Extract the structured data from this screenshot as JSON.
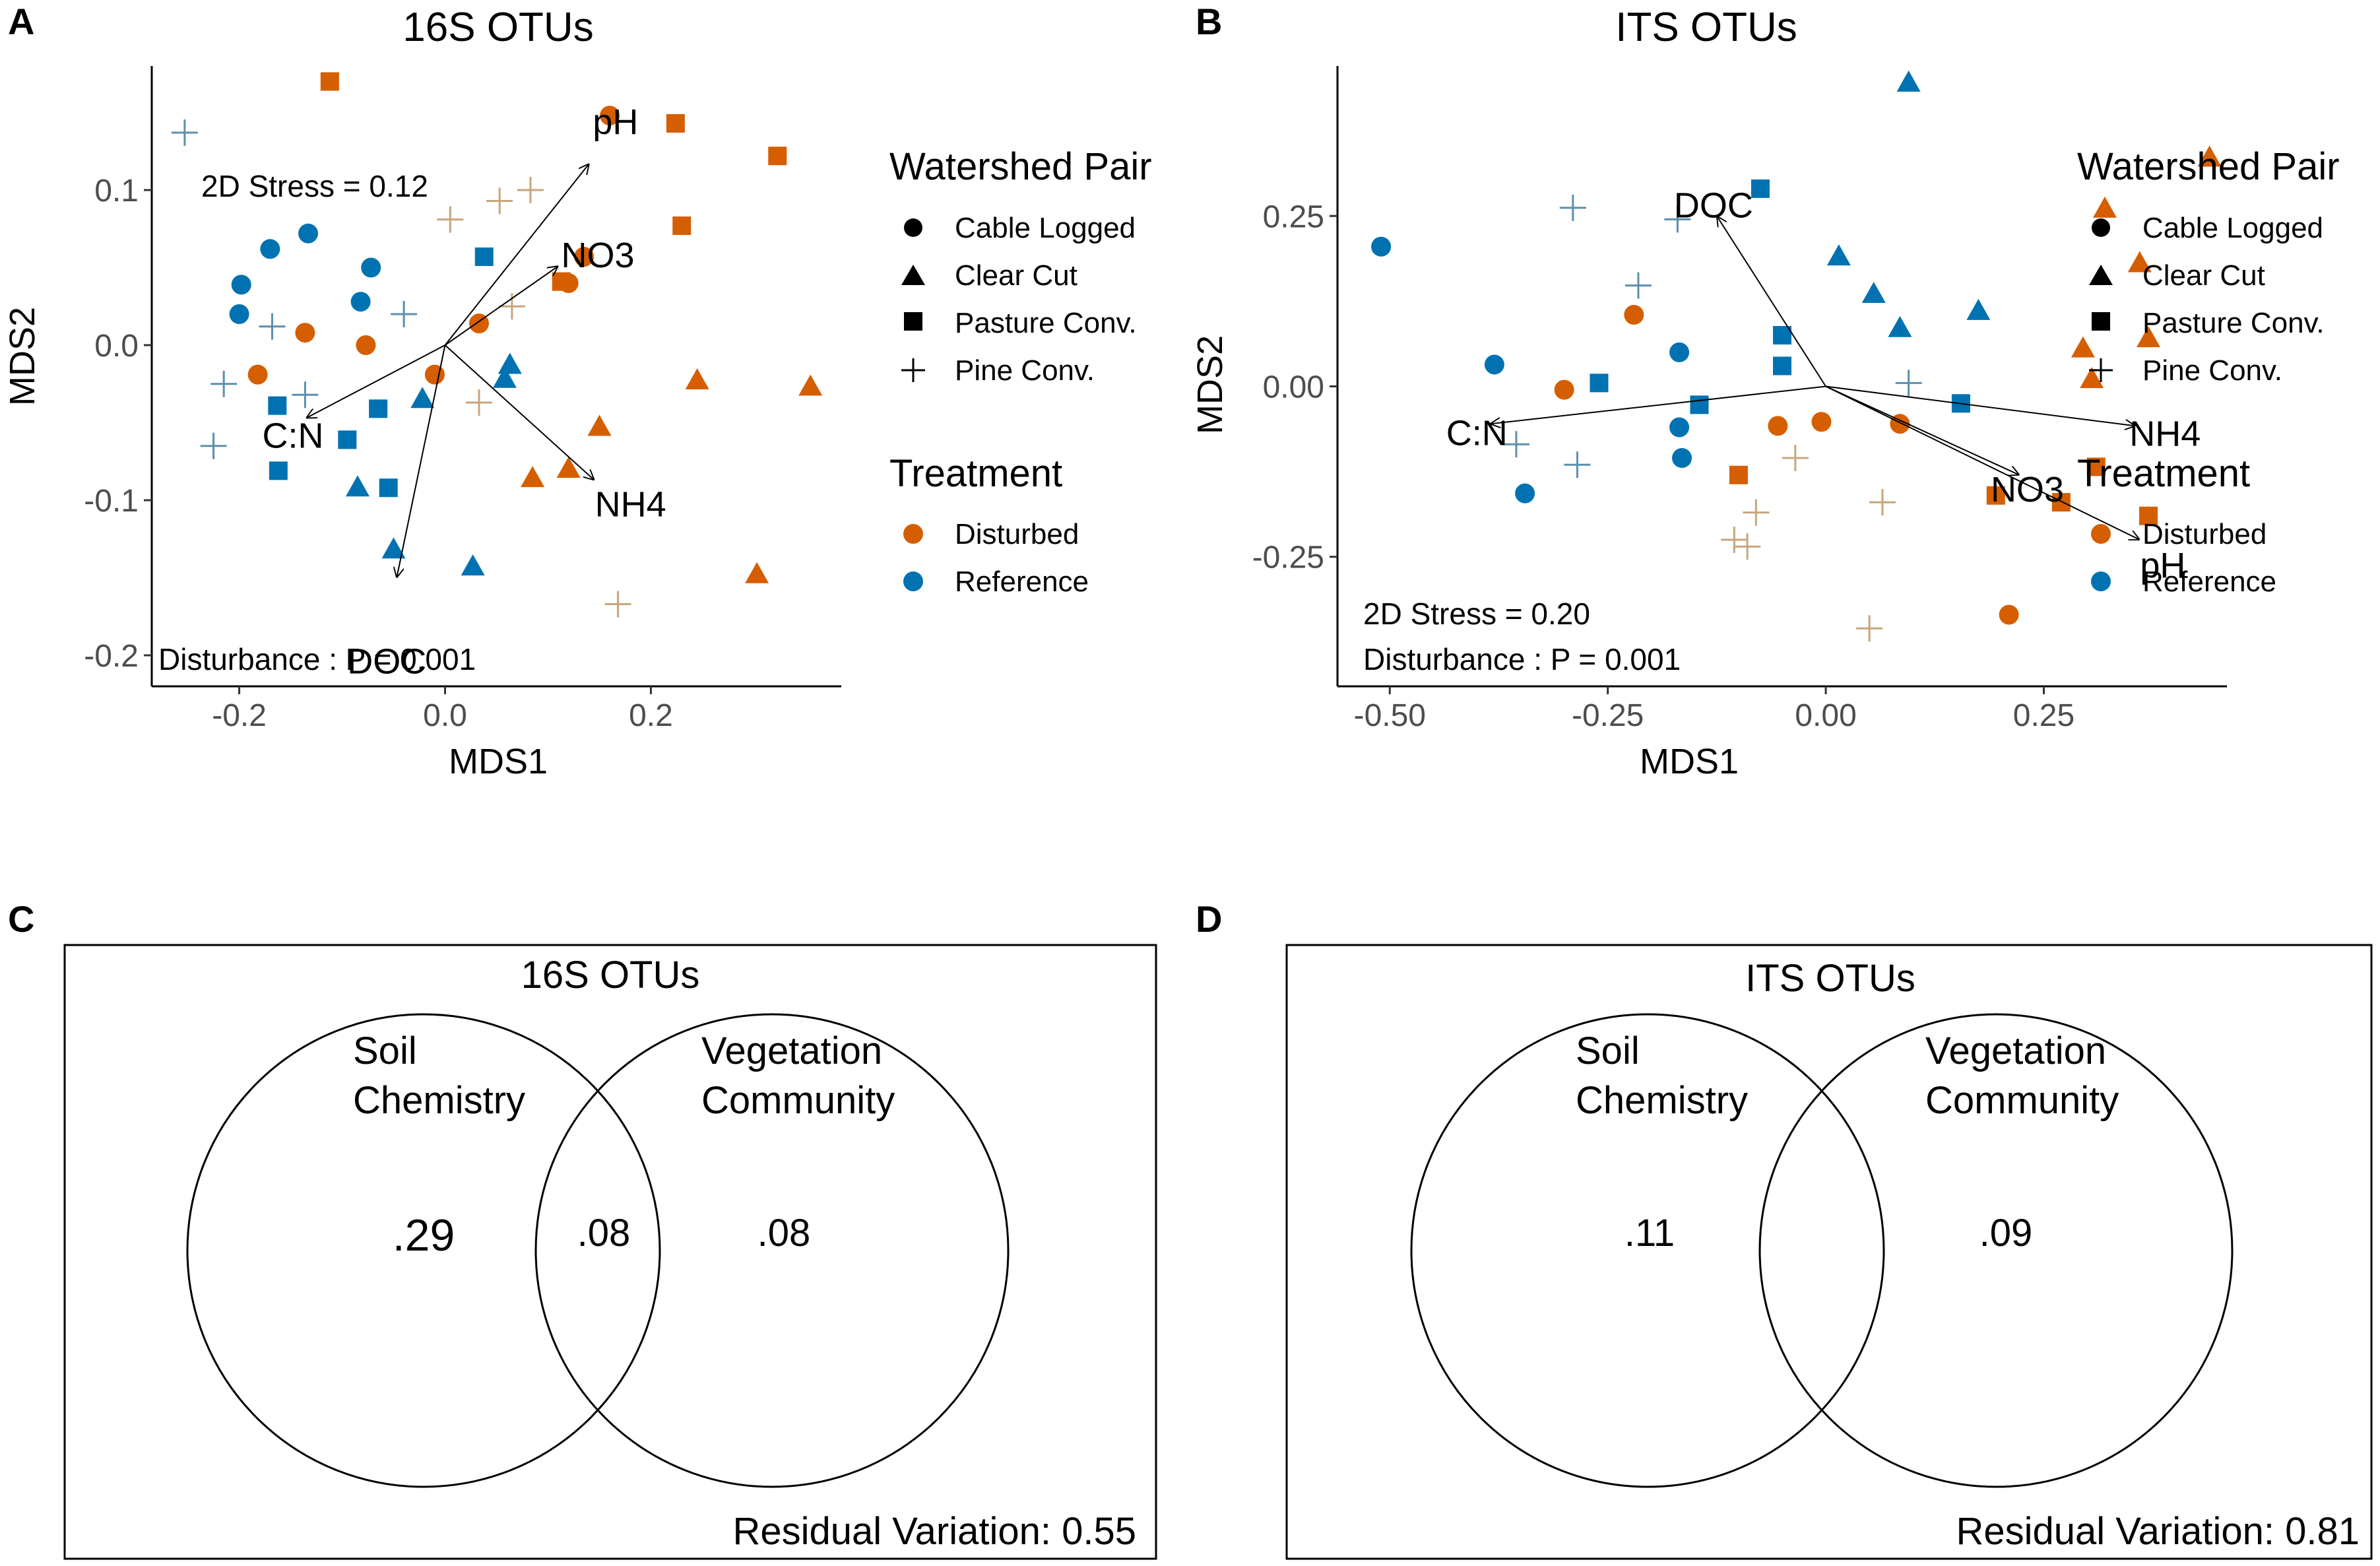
{
  "colors": {
    "disturbed": "#D55E00",
    "reference": "#0072B2",
    "disturbed_plus": "#C8A57A",
    "reference_plus": "#5B8FAE"
  },
  "panels": {
    "A": {
      "label": "A"
    },
    "B": {
      "label": "B"
    },
    "C": {
      "label": "C"
    },
    "D": {
      "label": "D"
    }
  },
  "legend": {
    "shape_title": "Watershed Pair",
    "shapes": [
      "Cable Logged",
      "Clear Cut",
      "Pasture Conv.",
      "Pine Conv."
    ],
    "color_title": "Treatment",
    "colors": [
      "Disturbed",
      "Reference"
    ]
  },
  "chart_data": [
    {
      "id": "A",
      "type": "scatter",
      "title": "16S OTUs",
      "xlabel": "MDS1",
      "ylabel": "MDS2",
      "xlim": [
        -0.285,
        0.385
      ],
      "ylim": [
        -0.22,
        0.18
      ],
      "xticks": [
        -0.2,
        0.0,
        0.2
      ],
      "xtick_labels": [
        "-0.2",
        "0.0",
        "0.2"
      ],
      "yticks": [
        -0.2,
        -0.1,
        0.0,
        0.1
      ],
      "ytick_labels": [
        "-0.2",
        "-0.1",
        "0.0",
        "0.1"
      ],
      "stress": "2D Stress = 0.12",
      "disturbance": "Disturbance :  P = 0.001",
      "vectors": [
        {
          "name": "pH",
          "x": 0.14,
          "y": 0.117
        },
        {
          "name": "NO3",
          "x": 0.11,
          "y": 0.051
        },
        {
          "name": "NH4",
          "x": 0.145,
          "y": -0.087
        },
        {
          "name": "C:N",
          "x": -0.135,
          "y": -0.047
        },
        {
          "name": "DOC",
          "x": -0.047,
          "y": -0.15
        }
      ],
      "points": [
        {
          "x": 0.16,
          "y": 0.148,
          "shape": "circle",
          "group": "disturbed"
        },
        {
          "x": 0.12,
          "y": 0.04,
          "shape": "circle",
          "group": "disturbed"
        },
        {
          "x": 0.135,
          "y": 0.057,
          "shape": "circle",
          "group": "disturbed"
        },
        {
          "x": 0.033,
          "y": 0.014,
          "shape": "circle",
          "group": "disturbed"
        },
        {
          "x": -0.01,
          "y": -0.019,
          "shape": "circle",
          "group": "disturbed"
        },
        {
          "x": -0.136,
          "y": 0.008,
          "shape": "circle",
          "group": "disturbed"
        },
        {
          "x": -0.077,
          "y": 0.0,
          "shape": "circle",
          "group": "disturbed"
        },
        {
          "x": -0.182,
          "y": -0.019,
          "shape": "circle",
          "group": "disturbed"
        },
        {
          "x": -0.133,
          "y": 0.072,
          "shape": "circle",
          "group": "reference"
        },
        {
          "x": -0.17,
          "y": 0.062,
          "shape": "circle",
          "group": "reference"
        },
        {
          "x": -0.198,
          "y": 0.039,
          "shape": "circle",
          "group": "reference"
        },
        {
          "x": -0.2,
          "y": 0.02,
          "shape": "circle",
          "group": "reference"
        },
        {
          "x": -0.072,
          "y": 0.05,
          "shape": "circle",
          "group": "reference"
        },
        {
          "x": -0.082,
          "y": 0.028,
          "shape": "circle",
          "group": "reference"
        },
        {
          "x": 0.245,
          "y": -0.023,
          "shape": "triangle",
          "group": "disturbed"
        },
        {
          "x": 0.355,
          "y": -0.027,
          "shape": "triangle",
          "group": "disturbed"
        },
        {
          "x": 0.15,
          "y": -0.053,
          "shape": "triangle",
          "group": "disturbed"
        },
        {
          "x": 0.085,
          "y": -0.086,
          "shape": "triangle",
          "group": "disturbed"
        },
        {
          "x": 0.12,
          "y": -0.08,
          "shape": "triangle",
          "group": "disturbed"
        },
        {
          "x": 0.303,
          "y": -0.148,
          "shape": "triangle",
          "group": "disturbed"
        },
        {
          "x": 0.063,
          "y": -0.013,
          "shape": "triangle",
          "group": "reference"
        },
        {
          "x": 0.058,
          "y": -0.022,
          "shape": "triangle",
          "group": "reference"
        },
        {
          "x": -0.022,
          "y": -0.035,
          "shape": "triangle",
          "group": "reference"
        },
        {
          "x": -0.085,
          "y": -0.092,
          "shape": "triangle",
          "group": "reference"
        },
        {
          "x": -0.05,
          "y": -0.132,
          "shape": "triangle",
          "group": "reference"
        },
        {
          "x": 0.027,
          "y": -0.143,
          "shape": "triangle",
          "group": "reference"
        },
        {
          "x": -0.112,
          "y": 0.17,
          "shape": "square",
          "group": "disturbed"
        },
        {
          "x": 0.224,
          "y": 0.143,
          "shape": "square",
          "group": "disturbed"
        },
        {
          "x": 0.323,
          "y": 0.122,
          "shape": "square",
          "group": "disturbed"
        },
        {
          "x": 0.23,
          "y": 0.077,
          "shape": "square",
          "group": "disturbed"
        },
        {
          "x": 0.113,
          "y": 0.041,
          "shape": "square",
          "group": "disturbed"
        },
        {
          "x": 0.038,
          "y": 0.057,
          "shape": "square",
          "group": "reference"
        },
        {
          "x": -0.163,
          "y": -0.039,
          "shape": "square",
          "group": "reference"
        },
        {
          "x": -0.162,
          "y": -0.081,
          "shape": "square",
          "group": "reference"
        },
        {
          "x": -0.095,
          "y": -0.061,
          "shape": "square",
          "group": "reference"
        },
        {
          "x": -0.065,
          "y": -0.041,
          "shape": "square",
          "group": "reference"
        },
        {
          "x": -0.055,
          "y": -0.092,
          "shape": "square",
          "group": "reference"
        },
        {
          "x": 0.053,
          "y": 0.093,
          "shape": "plus",
          "group": "disturbed"
        },
        {
          "x": 0.083,
          "y": 0.1,
          "shape": "plus",
          "group": "disturbed"
        },
        {
          "x": 0.005,
          "y": 0.081,
          "shape": "plus",
          "group": "disturbed"
        },
        {
          "x": 0.065,
          "y": 0.025,
          "shape": "plus",
          "group": "disturbed"
        },
        {
          "x": 0.033,
          "y": -0.037,
          "shape": "plus",
          "group": "disturbed"
        },
        {
          "x": 0.168,
          "y": -0.167,
          "shape": "plus",
          "group": "disturbed"
        },
        {
          "x": -0.253,
          "y": 0.137,
          "shape": "plus",
          "group": "reference"
        },
        {
          "x": -0.168,
          "y": 0.012,
          "shape": "plus",
          "group": "reference"
        },
        {
          "x": -0.04,
          "y": 0.02,
          "shape": "plus",
          "group": "reference"
        },
        {
          "x": -0.215,
          "y": -0.025,
          "shape": "plus",
          "group": "reference"
        },
        {
          "x": -0.136,
          "y": -0.032,
          "shape": "plus",
          "group": "reference"
        },
        {
          "x": -0.225,
          "y": -0.065,
          "shape": "plus",
          "group": "reference"
        }
      ]
    },
    {
      "id": "B",
      "type": "scatter",
      "title": "ITS OTUs",
      "xlabel": "MDS1",
      "ylabel": "MDS2",
      "xlim": [
        -0.56,
        0.46
      ],
      "ylim": [
        -0.44,
        0.47
      ],
      "xticks": [
        -0.5,
        -0.25,
        0.0,
        0.25
      ],
      "xtick_labels": [
        "-0.50",
        "-0.25",
        "0.00",
        "0.25"
      ],
      "yticks": [
        -0.25,
        0.0,
        0.25
      ],
      "ytick_labels": [
        "-0.25",
        "0.00",
        "0.25"
      ],
      "stress": "2D Stress = 0.20",
      "disturbance": "Disturbance :  P = 0.001",
      "vectors": [
        {
          "name": "DOC",
          "x": -0.125,
          "y": 0.25
        },
        {
          "name": "C:N",
          "x": -0.385,
          "y": -0.055
        },
        {
          "name": "NH4",
          "x": 0.355,
          "y": -0.058
        },
        {
          "name": "NO3",
          "x": 0.222,
          "y": -0.13
        },
        {
          "name": "pH",
          "x": 0.36,
          "y": -0.225
        }
      ],
      "points": [
        {
          "x": -0.22,
          "y": 0.105,
          "shape": "circle",
          "group": "disturbed"
        },
        {
          "x": -0.3,
          "y": -0.005,
          "shape": "circle",
          "group": "disturbed"
        },
        {
          "x": -0.055,
          "y": -0.058,
          "shape": "circle",
          "group": "disturbed"
        },
        {
          "x": -0.005,
          "y": -0.052,
          "shape": "circle",
          "group": "disturbed"
        },
        {
          "x": 0.085,
          "y": -0.055,
          "shape": "circle",
          "group": "disturbed"
        },
        {
          "x": 0.21,
          "y": -0.335,
          "shape": "circle",
          "group": "disturbed"
        },
        {
          "x": -0.51,
          "y": 0.205,
          "shape": "circle",
          "group": "reference"
        },
        {
          "x": -0.38,
          "y": 0.032,
          "shape": "circle",
          "group": "reference"
        },
        {
          "x": -0.168,
          "y": 0.05,
          "shape": "circle",
          "group": "reference"
        },
        {
          "x": -0.168,
          "y": -0.06,
          "shape": "circle",
          "group": "reference"
        },
        {
          "x": -0.165,
          "y": -0.105,
          "shape": "circle",
          "group": "reference"
        },
        {
          "x": -0.345,
          "y": -0.157,
          "shape": "circle",
          "group": "reference"
        },
        {
          "x": 0.44,
          "y": 0.335,
          "shape": "triangle",
          "group": "disturbed"
        },
        {
          "x": 0.32,
          "y": 0.26,
          "shape": "triangle",
          "group": "disturbed"
        },
        {
          "x": 0.36,
          "y": 0.18,
          "shape": "triangle",
          "group": "disturbed"
        },
        {
          "x": 0.37,
          "y": 0.07,
          "shape": "triangle",
          "group": "disturbed"
        },
        {
          "x": 0.295,
          "y": 0.055,
          "shape": "triangle",
          "group": "disturbed"
        },
        {
          "x": 0.305,
          "y": 0.01,
          "shape": "triangle",
          "group": "disturbed"
        },
        {
          "x": 0.095,
          "y": 0.445,
          "shape": "triangle",
          "group": "reference"
        },
        {
          "x": 0.015,
          "y": 0.19,
          "shape": "triangle",
          "group": "reference"
        },
        {
          "x": 0.055,
          "y": 0.135,
          "shape": "triangle",
          "group": "reference"
        },
        {
          "x": 0.085,
          "y": 0.085,
          "shape": "triangle",
          "group": "reference"
        },
        {
          "x": 0.175,
          "y": 0.11,
          "shape": "triangle",
          "group": "reference"
        },
        {
          "x": -0.1,
          "y": -0.13,
          "shape": "square",
          "group": "disturbed"
        },
        {
          "x": 0.195,
          "y": -0.16,
          "shape": "square",
          "group": "disturbed"
        },
        {
          "x": 0.27,
          "y": -0.17,
          "shape": "square",
          "group": "disturbed"
        },
        {
          "x": 0.31,
          "y": -0.118,
          "shape": "square",
          "group": "disturbed"
        },
        {
          "x": 0.37,
          "y": -0.19,
          "shape": "square",
          "group": "disturbed"
        },
        {
          "x": -0.075,
          "y": 0.29,
          "shape": "square",
          "group": "reference"
        },
        {
          "x": -0.05,
          "y": 0.075,
          "shape": "square",
          "group": "reference"
        },
        {
          "x": -0.05,
          "y": 0.03,
          "shape": "square",
          "group": "reference"
        },
        {
          "x": -0.26,
          "y": 0.005,
          "shape": "square",
          "group": "reference"
        },
        {
          "x": -0.145,
          "y": -0.027,
          "shape": "square",
          "group": "reference"
        },
        {
          "x": 0.155,
          "y": -0.025,
          "shape": "square",
          "group": "reference"
        },
        {
          "x": -0.035,
          "y": -0.105,
          "shape": "plus",
          "group": "disturbed"
        },
        {
          "x": -0.08,
          "y": -0.185,
          "shape": "plus",
          "group": "disturbed"
        },
        {
          "x": -0.105,
          "y": -0.225,
          "shape": "plus",
          "group": "disturbed"
        },
        {
          "x": -0.09,
          "y": -0.235,
          "shape": "plus",
          "group": "disturbed"
        },
        {
          "x": 0.065,
          "y": -0.17,
          "shape": "plus",
          "group": "disturbed"
        },
        {
          "x": 0.05,
          "y": -0.355,
          "shape": "plus",
          "group": "disturbed"
        },
        {
          "x": -0.29,
          "y": 0.262,
          "shape": "plus",
          "group": "reference"
        },
        {
          "x": -0.17,
          "y": 0.245,
          "shape": "plus",
          "group": "reference"
        },
        {
          "x": -0.215,
          "y": 0.148,
          "shape": "plus",
          "group": "reference"
        },
        {
          "x": -0.355,
          "y": -0.085,
          "shape": "plus",
          "group": "reference"
        },
        {
          "x": -0.285,
          "y": -0.115,
          "shape": "plus",
          "group": "reference"
        },
        {
          "x": 0.095,
          "y": 0.005,
          "shape": "plus",
          "group": "reference"
        }
      ]
    },
    {
      "id": "C",
      "type": "venn",
      "title": "16S OTUs",
      "left_label": [
        "Soil",
        "Chemistry"
      ],
      "right_label": [
        "Vegetation",
        "Community"
      ],
      "left_value": ".29",
      "overlap_value": ".08",
      "right_value": ".08",
      "residual": "Residual Variation: 0.55"
    },
    {
      "id": "D",
      "type": "venn",
      "title": "ITS OTUs",
      "left_label": [
        "Soil",
        "Chemistry"
      ],
      "right_label": [
        "Vegetation",
        "Community"
      ],
      "left_value": ".11",
      "overlap_value": "",
      "right_value": ".09",
      "residual": "Residual Variation: 0.81"
    }
  ]
}
